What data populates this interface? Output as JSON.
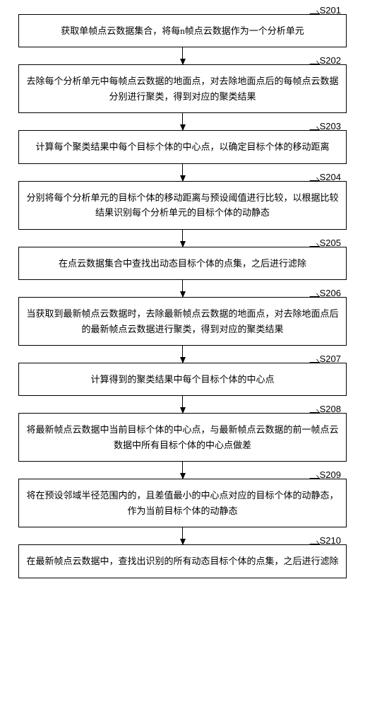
{
  "flowchart": {
    "type": "flowchart",
    "background_color": "#ffffff",
    "box_border_color": "#000000",
    "box_border_width": 1.2,
    "text_color": "#000000",
    "font_size_pt": 13,
    "label_font_family": "Arial",
    "arrow_color": "#000000",
    "arrow_head_size": 9,
    "steps": [
      {
        "id": "S201",
        "text": "获取单帧点云数据集合，将每n帧点云数据作为一个分析单元"
      },
      {
        "id": "S202",
        "text": "去除每个分析单元中每帧点云数据的地面点，对去除地面点后的每帧点云数据分别进行聚类，得到对应的聚类结果"
      },
      {
        "id": "S203",
        "text": "计算每个聚类结果中每个目标个体的中心点，以确定目标个体的移动距离"
      },
      {
        "id": "S204",
        "text": "分别将每个分析单元的目标个体的移动距离与预设阈值进行比较，以根据比较结果识别每个分析单元的目标个体的动静态"
      },
      {
        "id": "S205",
        "text": "在点云数据集合中查找出动态目标个体的点集，之后进行滤除"
      },
      {
        "id": "S206",
        "text": "当获取到最新帧点云数据时，去除最新帧点云数据的地面点，对去除地面点后的最新帧点云数据进行聚类，得到对应的聚类结果"
      },
      {
        "id": "S207",
        "text": "计算得到的聚类结果中每个目标个体的中心点"
      },
      {
        "id": "S208",
        "text": "将最新帧点云数据中当前目标个体的中心点，与最新帧点云数据的前一帧点云数据中所有目标个体的中心点做差"
      },
      {
        "id": "S209",
        "text": "将在预设邻域半径范围内的，且差值最小的中心点对应的目标个体的动静态，作为当前目标个体的动静态"
      },
      {
        "id": "S210",
        "text": "在最新帧点云数据中，查找出识别的所有动态目标个体的点集，之后进行滤除"
      }
    ]
  }
}
